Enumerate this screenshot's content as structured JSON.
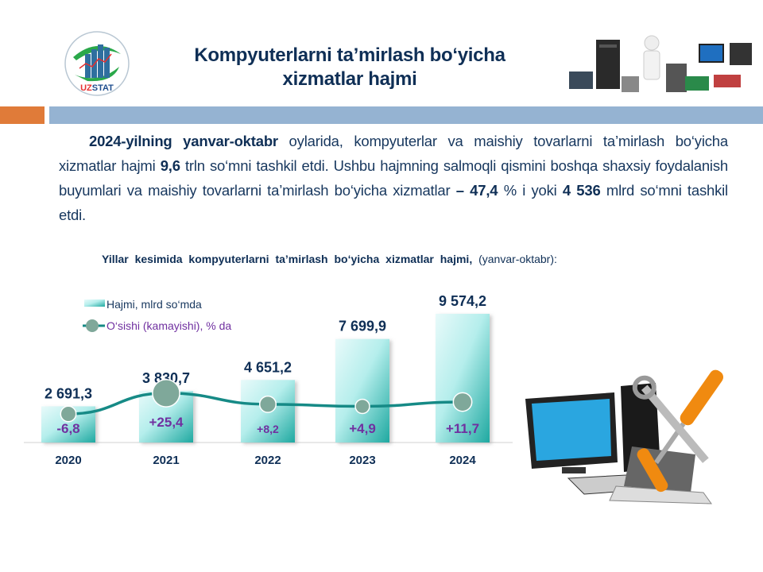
{
  "header": {
    "logo_text": "UZSTAT",
    "title_line1": "Kompyuterlarni ta’mirlash bo‘yicha",
    "title_line2": "xizmatlar hajmi"
  },
  "paragraph": {
    "bold1": "2024-yilning yanvar-oktabr",
    "text1": " oylarida, kompyuterlar va maishiy tovarlarni ta’mirlash bo‘yicha xizmatlar hajmi ",
    "bold2": "9,6",
    "text2": " trln so‘mni tashkil etdi. Ushbu hajmning salmoqli qismini boshqa shaxsiy foydalanish buyumlari va maishiy tovarlarni ta’mirlash bo‘yicha xizmatlar ",
    "bold3": "– 47,4",
    "text3": " % i  yoki ",
    "bold4": "4 536",
    "text4": " mlrd  so‘mni tashkil etdi."
  },
  "chart_subtitle": {
    "bold": "Yillar kesimida kompyuterlarni ta’mirlash bo‘yicha xizmatlar hajmi,",
    "normal": " (yanvar-oktabr):"
  },
  "chart_data": {
    "type": "bar",
    "categories": [
      "2020",
      "2021",
      "2022",
      "2023",
      "2024"
    ],
    "series": [
      {
        "name": "Hajmi,  mlrd so‘mda",
        "type": "bar",
        "values": [
          2691.3,
          3830.7,
          4651.2,
          7699.9,
          9574.2
        ],
        "labels": [
          "2 691,3",
          "3 830,7",
          "4 651,2",
          "7 699,9",
          "9 574,2"
        ],
        "color": "#2bb5ad"
      },
      {
        "name": "O‘sishi  (kamayishi),  % da",
        "type": "line",
        "values": [
          -6.8,
          25.4,
          8.2,
          4.9,
          11.7
        ],
        "labels": [
          "-6,8",
          "+25,4",
          "+8,2",
          "+4,9",
          "+11,7"
        ],
        "color": "#168a86",
        "marker_color": "#7fa89a"
      }
    ],
    "legend": "top-left",
    "grid": false,
    "value_label_color": "#0f2f56",
    "growth_label_color": "#7030a0"
  }
}
